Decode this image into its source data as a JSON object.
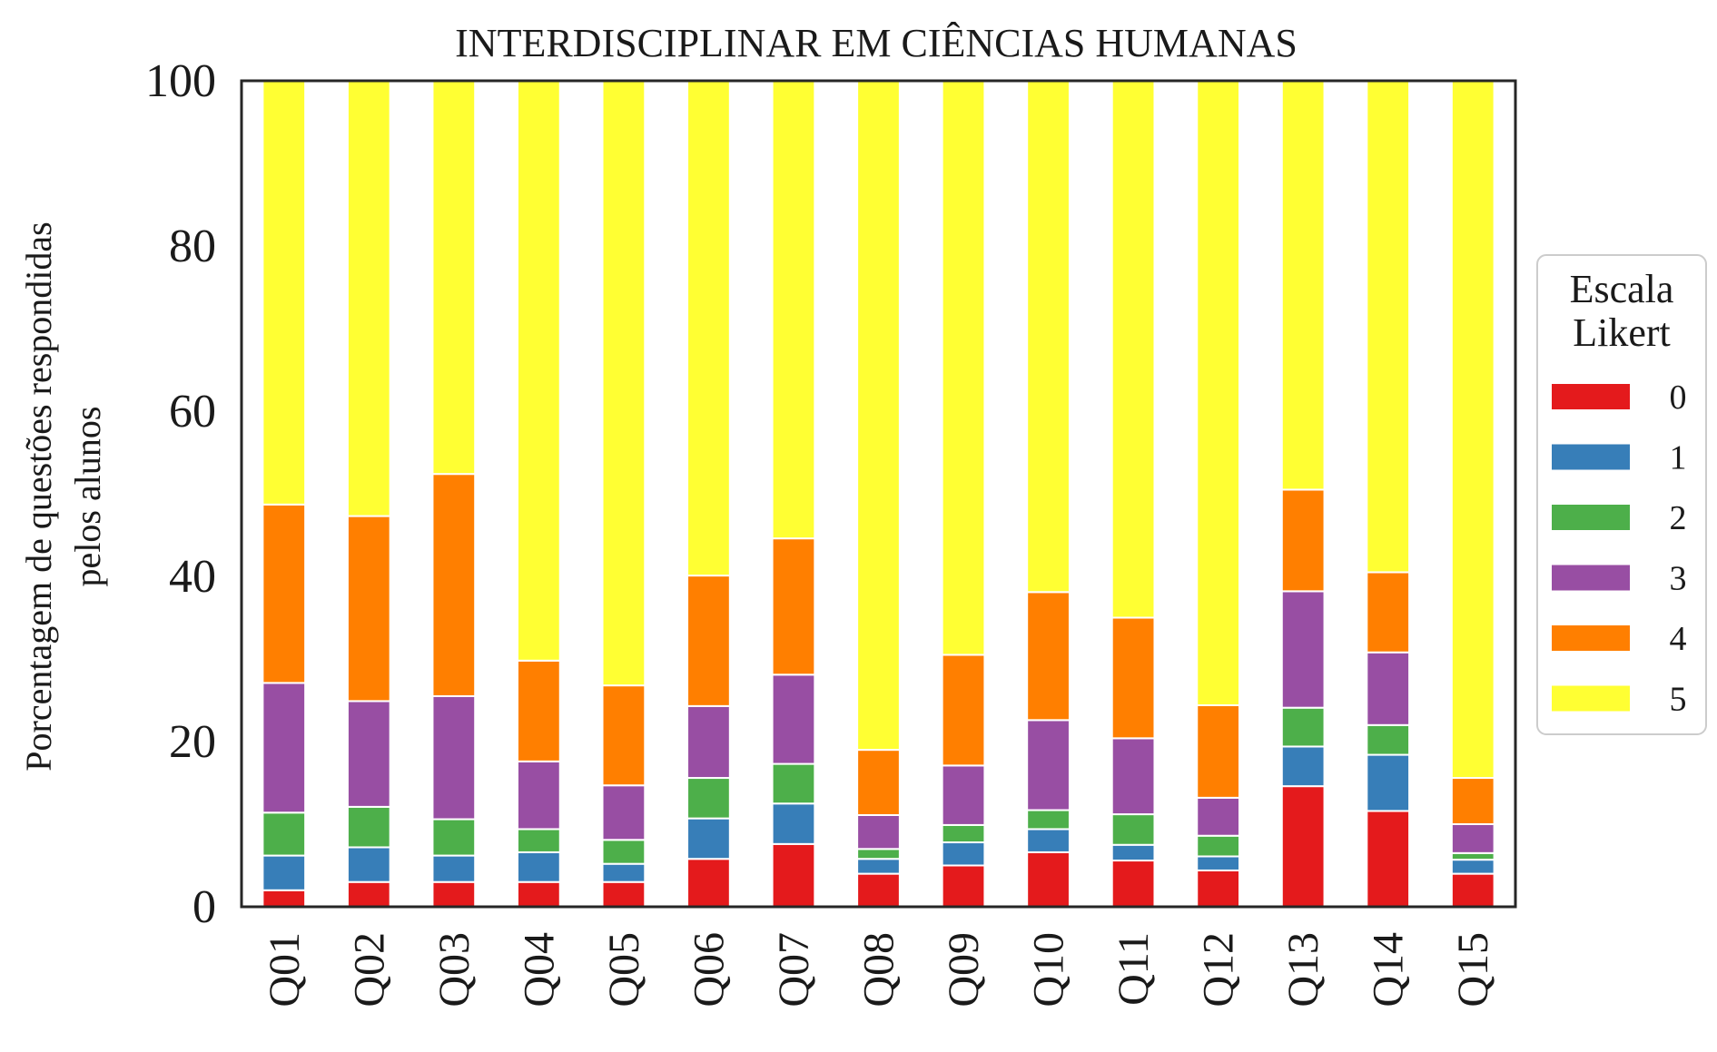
{
  "chart_data": {
    "type": "bar",
    "stacked": true,
    "title": "INTERDISCIPLINAR EM CIÊNCIAS HUMANAS",
    "xlabel": "",
    "ylabel_lines": [
      "Porcentagem de questões respondidas",
      "pelos alunos"
    ],
    "ylim": [
      0,
      100
    ],
    "yticks": [
      "0",
      "20",
      "40",
      "60",
      "80",
      "100"
    ],
    "grid": false,
    "legend": {
      "title_lines": [
        "Escala",
        "Likert"
      ],
      "placement": "right"
    },
    "categories": [
      "Q01",
      "Q02",
      "Q03",
      "Q04",
      "Q05",
      "Q06",
      "Q07",
      "Q08",
      "Q09",
      "Q10",
      "Q11",
      "Q12",
      "Q13",
      "Q14",
      "Q15"
    ],
    "series": [
      {
        "name": "0",
        "color": "#e41a1c",
        "values": [
          2.0,
          3.0,
          3.0,
          3.0,
          3.0,
          5.8,
          7.6,
          4.0,
          5.0,
          6.6,
          5.6,
          4.4,
          14.6,
          11.6,
          4.0
        ]
      },
      {
        "name": "1",
        "color": "#377eb8",
        "values": [
          4.2,
          4.2,
          3.2,
          3.6,
          2.2,
          4.9,
          4.9,
          1.8,
          2.8,
          2.8,
          1.9,
          1.7,
          4.8,
          6.8,
          1.7
        ]
      },
      {
        "name": "2",
        "color": "#4daf4a",
        "values": [
          5.2,
          4.9,
          4.4,
          2.8,
          2.9,
          4.9,
          4.8,
          1.2,
          2.1,
          2.3,
          3.7,
          2.5,
          4.7,
          3.6,
          0.8
        ]
      },
      {
        "name": "3",
        "color": "#984ea3",
        "values": [
          15.7,
          12.8,
          14.9,
          8.2,
          6.6,
          8.7,
          10.8,
          4.1,
          7.2,
          10.9,
          9.2,
          4.6,
          14.1,
          8.8,
          3.5
        ]
      },
      {
        "name": "4",
        "color": "#ff7f00",
        "values": [
          21.6,
          22.4,
          26.9,
          12.2,
          12.1,
          15.8,
          16.5,
          7.9,
          13.4,
          15.5,
          14.6,
          11.2,
          12.3,
          9.7,
          5.6
        ]
      },
      {
        "name": "5",
        "color": "#ffff33",
        "values": [
          51.3,
          52.7,
          47.6,
          70.2,
          73.2,
          59.9,
          55.4,
          81.0,
          69.5,
          61.9,
          65.0,
          75.6,
          49.5,
          59.5,
          84.4
        ]
      }
    ]
  }
}
